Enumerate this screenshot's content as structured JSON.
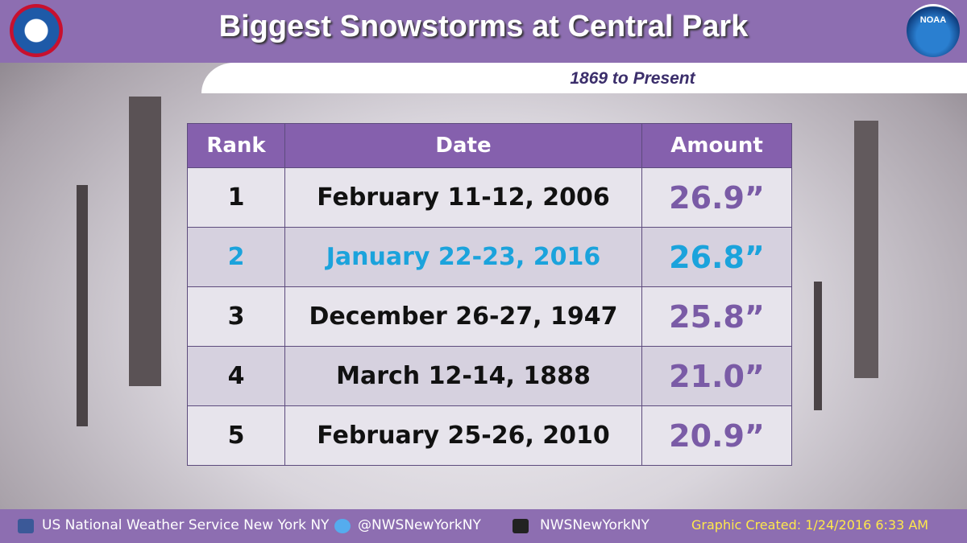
{
  "header": {
    "title": "Biggest Snowstorms at Central Park",
    "subtitle": "1869 to Present",
    "logo": "NOAA"
  },
  "table": {
    "columns": [
      "Rank",
      "Date",
      "Amount"
    ],
    "rows": [
      [
        "1",
        "February 11-12, 2006",
        "26.9”"
      ],
      [
        "2",
        "January 22-23, 2016",
        "26.8”"
      ],
      [
        "3",
        "December 26-27, 1947",
        "25.8”"
      ],
      [
        "4",
        "March 12-14, 1888",
        "21.0”"
      ],
      [
        "5",
        "February 25-26, 2010",
        "20.9”"
      ]
    ]
  },
  "footer": {
    "facebook": "US National Weather Service New York NY",
    "twitter": "@NWSNewYorkNY",
    "youtube": "NWSNewYorkNY",
    "created": "Graphic Created: 1/24/2016 6:33 AM"
  }
}
